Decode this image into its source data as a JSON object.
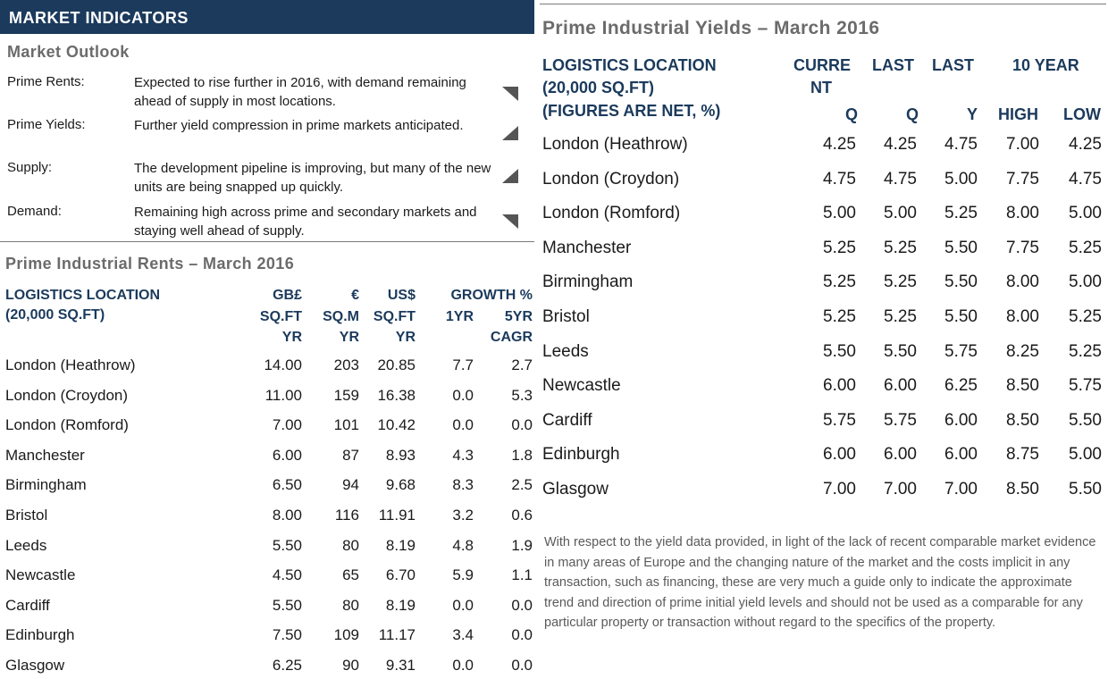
{
  "market_indicators": {
    "title": "MARKET INDICATORS",
    "outlook_title": "Market Outlook",
    "rows": [
      {
        "label": "Prime Rents:",
        "text": "Expected to rise further in 2016, with demand remaining ahead of supply in most locations.",
        "trend": "down-right"
      },
      {
        "label": "Prime Yields:",
        "text": "Further yield compression in prime markets anticipated.",
        "trend": "up-right"
      },
      {
        "label": "Supply:",
        "text": "The development pipeline is improving, but many of the new units are being snapped up quickly.",
        "trend": "up-right"
      },
      {
        "label": "Demand:",
        "text": "Remaining high across prime and secondary markets and staying well ahead of supply.",
        "trend": "down-right"
      }
    ]
  },
  "rents": {
    "title": "Prime Industrial Rents – March 2016",
    "headers": {
      "location_1": "LOGISTICS LOCATION",
      "location_2": "(20,000 SQ.FT)",
      "gbp_1": "GB£",
      "gbp_2": "SQ.FT",
      "gbp_3": "YR",
      "eur_1": "€",
      "eur_2": "SQ.M",
      "eur_3": "YR",
      "usd_1": "US$",
      "usd_2": "SQ.FT",
      "usd_3": "YR",
      "growth": "GROWTH %",
      "g1": "1YR",
      "g5_1": "5YR",
      "g5_2": "CAGR"
    },
    "rows": [
      {
        "location": "London (Heathrow)",
        "gbp": "14.00",
        "eur": "203",
        "usd": "20.85",
        "y1": "7.7",
        "y5": "2.7"
      },
      {
        "location": "London (Croydon)",
        "gbp": "11.00",
        "eur": "159",
        "usd": "16.38",
        "y1": "0.0",
        "y5": "5.3"
      },
      {
        "location": "London (Romford)",
        "gbp": "7.00",
        "eur": "101",
        "usd": "10.42",
        "y1": "0.0",
        "y5": "0.0"
      },
      {
        "location": "Manchester",
        "gbp": "6.00",
        "eur": "87",
        "usd": "8.93",
        "y1": "4.3",
        "y5": "1.8"
      },
      {
        "location": "Birmingham",
        "gbp": "6.50",
        "eur": "94",
        "usd": "9.68",
        "y1": "8.3",
        "y5": "2.5"
      },
      {
        "location": "Bristol",
        "gbp": "8.00",
        "eur": "116",
        "usd": "11.91",
        "y1": "3.2",
        "y5": "0.6"
      },
      {
        "location": "Leeds",
        "gbp": "5.50",
        "eur": "80",
        "usd": "8.19",
        "y1": "4.8",
        "y5": "1.9"
      },
      {
        "location": "Newcastle",
        "gbp": "4.50",
        "eur": "65",
        "usd": "6.70",
        "y1": "5.9",
        "y5": "1.1"
      },
      {
        "location": "Cardiff",
        "gbp": "5.50",
        "eur": "80",
        "usd": "8.19",
        "y1": "0.0",
        "y5": "0.0"
      },
      {
        "location": "Edinburgh",
        "gbp": "7.50",
        "eur": "109",
        "usd": "11.17",
        "y1": "3.4",
        "y5": "0.0"
      },
      {
        "location": "Glasgow",
        "gbp": "6.25",
        "eur": "90",
        "usd": "9.31",
        "y1": "0.0",
        "y5": "0.0"
      }
    ]
  },
  "yields": {
    "title": "Prime Industrial Yields – March 2016",
    "headers": {
      "location_1": "LOGISTICS LOCATION",
      "location_2": "(20,000 SQ.FT)",
      "location_3": "(FIGURES ARE NET, %)",
      "current_1": "CURRE",
      "current_2": "NT",
      "current_3": "Q",
      "lastq_1": "LAST",
      "lastq_2": "Q",
      "lasty_1": "LAST",
      "lasty_2": "Y",
      "ten_year": "10 YEAR",
      "high": "HIGH",
      "low": "LOW"
    },
    "rows": [
      {
        "location": "London (Heathrow)",
        "cur": "4.25",
        "lq": "4.25",
        "ly": "4.75",
        "hi": "7.00",
        "lo": "4.25"
      },
      {
        "location": "London (Croydon)",
        "cur": "4.75",
        "lq": "4.75",
        "ly": "5.00",
        "hi": "7.75",
        "lo": "4.75"
      },
      {
        "location": "London (Romford)",
        "cur": "5.00",
        "lq": "5.00",
        "ly": "5.25",
        "hi": "8.00",
        "lo": "5.00"
      },
      {
        "location": "Manchester",
        "cur": "5.25",
        "lq": "5.25",
        "ly": "5.50",
        "hi": "7.75",
        "lo": "5.25"
      },
      {
        "location": "Birmingham",
        "cur": "5.25",
        "lq": "5.25",
        "ly": "5.50",
        "hi": "8.00",
        "lo": "5.00"
      },
      {
        "location": "Bristol",
        "cur": "5.25",
        "lq": "5.25",
        "ly": "5.50",
        "hi": "8.00",
        "lo": "5.25"
      },
      {
        "location": "Leeds",
        "cur": "5.50",
        "lq": "5.50",
        "ly": "5.75",
        "hi": "8.25",
        "lo": "5.25"
      },
      {
        "location": "Newcastle",
        "cur": "6.00",
        "lq": "6.00",
        "ly": "6.25",
        "hi": "8.50",
        "lo": "5.75"
      },
      {
        "location": "Cardiff",
        "cur": "5.75",
        "lq": "5.75",
        "ly": "6.00",
        "hi": "8.50",
        "lo": "5.50"
      },
      {
        "location": "Edinburgh",
        "cur": "6.00",
        "lq": "6.00",
        "ly": "6.00",
        "hi": "8.75",
        "lo": "5.00"
      },
      {
        "location": "Glasgow",
        "cur": "7.00",
        "lq": "7.00",
        "ly": "7.00",
        "hi": "8.50",
        "lo": "5.50"
      }
    ],
    "disclaimer": "With respect to the yield data provided, in light of the lack of recent comparable market evidence in many areas of Europe and the changing nature of the market and the costs implicit in any transaction, such as financing, these are very much a guide only to indicate the approximate trend and direction of prime initial yield levels and should not be used as a comparable for any particular property or transaction without regard to the specifics of the property."
  },
  "colors": {
    "navy": "#1b3a5c",
    "grey_title": "#6b6b6b",
    "arrow": "#555555"
  }
}
